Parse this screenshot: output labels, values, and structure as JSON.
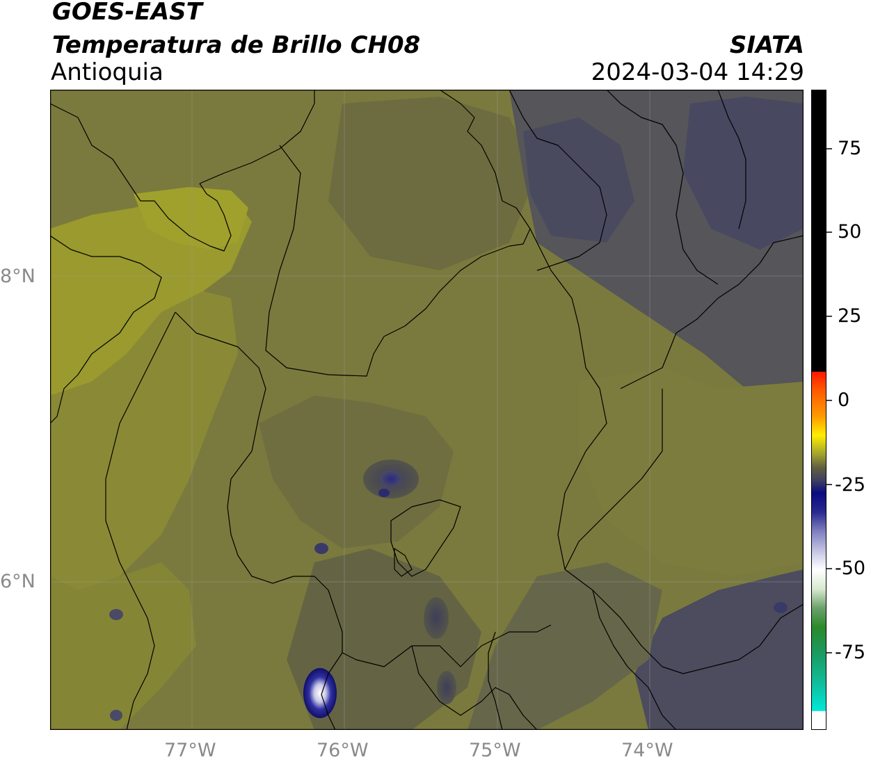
{
  "header": {
    "title_line1": "GOES-EAST",
    "title_line2": "Temperatura de Brillo CH08",
    "region": "Antioquia",
    "source": "SIATA",
    "timestamp": "2024-03-04 14:29"
  },
  "map": {
    "lat_labels": [
      "8°N",
      "6°N"
    ],
    "lon_labels": [
      "77°W",
      "76°W",
      "75°W",
      "74°W"
    ],
    "background_colors": {
      "olive_light": "#9a9a2e",
      "olive": "#7a7a3e",
      "olive_dark": "#66663f",
      "gray_blue": "#4a4a5a",
      "storm_blue": "#1c1c7a"
    },
    "grid": "on"
  },
  "colorbar": {
    "ticks": [
      "75",
      "50",
      "25",
      "0",
      "-25",
      "-50",
      "-75"
    ],
    "colors": [
      "#000000",
      "#ff2200",
      "#ffcc00",
      "#606040",
      "#0a0a80",
      "#ffffff",
      "#2a8a2a",
      "#00e0d0"
    ]
  }
}
